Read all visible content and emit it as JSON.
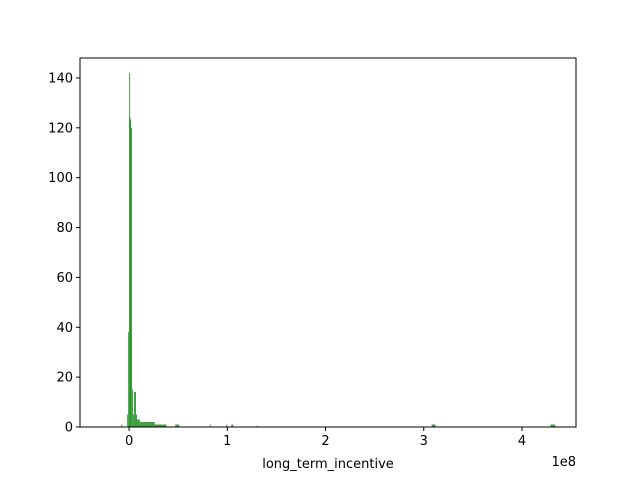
{
  "chart_data": {
    "type": "bar",
    "xlabel": "long_term_incentive",
    "ylabel": "",
    "x_offset_label": "1e8",
    "x_scale": 100000000,
    "xlim": [
      -50000000,
      455000000
    ],
    "ylim": [
      0,
      148
    ],
    "x_ticks": [
      0,
      100000000,
      200000000,
      300000000,
      400000000
    ],
    "x_tick_labels": [
      "0",
      "1",
      "2",
      "3",
      "4"
    ],
    "y_ticks": [
      0,
      20,
      40,
      60,
      80,
      100,
      120,
      140
    ],
    "y_tick_labels": [
      "0",
      "20",
      "40",
      "60",
      "80",
      "100",
      "120",
      "140"
    ],
    "bar_color": "#008000",
    "bins": [
      {
        "x0": -8000000,
        "x1": -7000000,
        "count": 1
      },
      {
        "x0": -2000000,
        "x1": -1000000,
        "count": 5
      },
      {
        "x0": -1000000,
        "x1": 0,
        "count": 38
      },
      {
        "x0": 0,
        "x1": 500000,
        "count": 142
      },
      {
        "x0": 500000,
        "x1": 1000000,
        "count": 124
      },
      {
        "x0": 1000000,
        "x1": 2000000,
        "count": 123
      },
      {
        "x0": 2000000,
        "x1": 3000000,
        "count": 120
      },
      {
        "x0": 3000000,
        "x1": 4000000,
        "count": 15
      },
      {
        "x0": 4000000,
        "x1": 5000000,
        "count": 5
      },
      {
        "x0": 5000000,
        "x1": 6000000,
        "count": 14
      },
      {
        "x0": 6000000,
        "x1": 7000000,
        "count": 14
      },
      {
        "x0": 7000000,
        "x1": 8000000,
        "count": 5
      },
      {
        "x0": 8000000,
        "x1": 9000000,
        "count": 3
      },
      {
        "x0": 9000000,
        "x1": 11000000,
        "count": 3
      },
      {
        "x0": 11000000,
        "x1": 14000000,
        "count": 2
      },
      {
        "x0": 14000000,
        "x1": 18000000,
        "count": 2
      },
      {
        "x0": 18000000,
        "x1": 26000000,
        "count": 2
      },
      {
        "x0": 26000000,
        "x1": 38000000,
        "count": 1
      },
      {
        "x0": 47000000,
        "x1": 51000000,
        "count": 1
      },
      {
        "x0": 82000000,
        "x1": 83000000,
        "count": 1
      },
      {
        "x0": 99000000,
        "x1": 100000000,
        "count": 1
      },
      {
        "x0": 104000000,
        "x1": 106000000,
        "count": 1
      },
      {
        "x0": 130000000,
        "x1": 131000000,
        "count": 0.5
      },
      {
        "x0": 308000000,
        "x1": 312000000,
        "count": 1
      },
      {
        "x0": 429000000,
        "x1": 434000000,
        "count": 1
      }
    ]
  }
}
